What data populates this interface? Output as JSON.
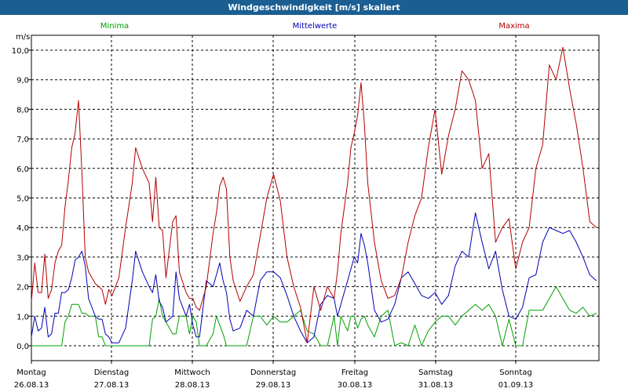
{
  "window": {
    "title": "Windgeschwindigkeit [m/s] skaliert"
  },
  "chart_data": {
    "type": "line",
    "title": "Windgeschwindigkeit [m/s] skaliert",
    "ylabel": "m/s",
    "xlabel": "",
    "ylim": [
      0,
      10.5
    ],
    "yticks": [
      "0,0",
      "1,0",
      "2,0",
      "3,0",
      "4,0",
      "5,0",
      "6,0",
      "7,0",
      "8,0",
      "9,0",
      "10,0"
    ],
    "x_range_hours": [
      0,
      168
    ],
    "day_labels": [
      {
        "day": "Montag",
        "date": "26.08.13"
      },
      {
        "day": "Dienstag",
        "date": "27.08.13"
      },
      {
        "day": "Mittwoch",
        "date": "28.08.13"
      },
      {
        "day": "Donnerstag",
        "date": "29.08.13"
      },
      {
        "day": "Freitag",
        "date": "30.08.13"
      },
      {
        "day": "Samstag",
        "date": "31.08.13"
      },
      {
        "day": "Sonntag",
        "date": "01.09.13"
      }
    ],
    "grid": true,
    "legend_position": "top",
    "series": [
      {
        "name": "Minima",
        "color": "#00a000",
        "x": [
          0,
          1,
          2,
          3,
          4,
          5,
          6,
          7,
          8,
          9,
          10,
          11,
          12,
          13,
          14,
          15,
          16,
          17,
          18,
          19,
          20,
          21,
          22,
          23,
          24,
          26,
          28,
          30,
          31,
          33,
          35,
          36,
          37,
          38,
          39,
          40,
          42,
          43,
          44,
          46,
          47,
          48,
          49,
          50,
          52,
          54,
          55,
          56,
          57,
          58,
          59,
          60,
          62,
          64,
          66,
          68,
          70,
          72,
          74,
          76,
          78,
          80,
          82,
          84,
          86,
          88,
          90,
          91,
          92,
          94,
          95,
          96,
          97,
          98,
          99,
          100,
          102,
          104,
          106,
          108,
          110,
          112,
          114,
          116,
          118,
          120,
          122,
          124,
          126,
          128,
          130,
          132,
          134,
          136,
          138,
          140,
          142,
          144,
          146,
          148,
          150,
          152,
          154,
          156,
          158,
          160,
          162,
          164,
          166,
          168
        ],
        "values": [
          0,
          0,
          0,
          0,
          0,
          0,
          0,
          0,
          0,
          0,
          0.8,
          1.0,
          1.4,
          1.4,
          1.4,
          1.1,
          1.1,
          1.0,
          1.0,
          1.0,
          0.3,
          0.3,
          0,
          0,
          0,
          0,
          0,
          0,
          0,
          0,
          0,
          0.9,
          1.0,
          1.6,
          1.0,
          0.8,
          0.4,
          0.4,
          1.0,
          1.0,
          0.4,
          1.0,
          0.8,
          0,
          0,
          0.4,
          1.0,
          0.7,
          0.4,
          0,
          0,
          0,
          0,
          0,
          1.0,
          1.0,
          0.7,
          1.0,
          0.8,
          0.8,
          1.0,
          1.2,
          0.5,
          0.4,
          0,
          0,
          1.0,
          0,
          1.0,
          0.5,
          1.0,
          1.0,
          0.6,
          0.9,
          1.0,
          0.7,
          0.3,
          1.0,
          1.2,
          0,
          0.1,
          0,
          0.7,
          0,
          0.5,
          0.8,
          1.0,
          1.0,
          0.7,
          1.0,
          1.2,
          1.4,
          1.2,
          1.4,
          1.0,
          0,
          0.9,
          0,
          0,
          1.2,
          1.2,
          1.2,
          1.6,
          2.0,
          1.6,
          1.2,
          1.1,
          1.3,
          1.0,
          1.1
        ]
      },
      {
        "name": "Mittelwerte",
        "color": "#0000b4",
        "x": [
          0,
          1,
          2,
          3,
          4,
          5,
          6,
          7,
          8,
          9,
          10,
          11,
          12,
          13,
          14,
          15,
          16,
          17,
          18,
          19,
          20,
          21,
          22,
          23,
          24,
          26,
          28,
          30,
          31,
          33,
          35,
          36,
          37,
          38,
          39,
          40,
          42,
          43,
          44,
          46,
          47,
          48,
          49,
          50,
          52,
          54,
          55,
          56,
          57,
          58,
          59,
          60,
          62,
          64,
          66,
          68,
          70,
          72,
          74,
          76,
          78,
          80,
          82,
          84,
          86,
          88,
          90,
          91,
          92,
          94,
          95,
          96,
          97,
          98,
          99,
          100,
          102,
          104,
          106,
          108,
          110,
          112,
          114,
          116,
          118,
          120,
          122,
          124,
          126,
          128,
          130,
          132,
          134,
          136,
          138,
          140,
          142,
          144,
          146,
          148,
          150,
          152,
          154,
          156,
          158,
          160,
          162,
          164,
          166,
          168
        ],
        "values": [
          0.3,
          1.0,
          0.5,
          0.6,
          1.3,
          0.3,
          0.4,
          1.1,
          1.1,
          1.8,
          1.8,
          1.9,
          2.3,
          2.9,
          3.0,
          3.2,
          2.7,
          1.6,
          1.3,
          1.0,
          0.9,
          0.9,
          0.4,
          0.3,
          0.1,
          0.1,
          0.6,
          2.2,
          3.2,
          2.5,
          2.0,
          1.8,
          2.4,
          1.5,
          1.3,
          0.8,
          1.0,
          2.5,
          1.6,
          1.0,
          1.4,
          0.7,
          0.3,
          0.3,
          2.2,
          2.0,
          2.4,
          2.8,
          2.2,
          1.8,
          0.9,
          0.5,
          0.6,
          1.2,
          1.0,
          2.2,
          2.5,
          2.5,
          2.3,
          1.7,
          1.0,
          0.5,
          0.1,
          0.3,
          1.4,
          1.7,
          1.6,
          1.0,
          1.4,
          2.2,
          2.6,
          3.0,
          2.8,
          3.8,
          3.4,
          2.8,
          1.2,
          0.8,
          0.9,
          1.4,
          2.3,
          2.5,
          2.1,
          1.7,
          1.6,
          1.8,
          1.4,
          1.7,
          2.7,
          3.2,
          3.0,
          4.5,
          3.5,
          2.6,
          3.2,
          1.9,
          1.0,
          0.9,
          1.3,
          2.3,
          2.4,
          3.5,
          4.0,
          3.9,
          3.8,
          3.9,
          3.5,
          3.0,
          2.4,
          2.2
        ]
      },
      {
        "name": "Maxima",
        "color": "#b40000",
        "x": [
          0,
          1,
          2,
          3,
          4,
          5,
          6,
          7,
          8,
          9,
          10,
          11,
          12,
          13,
          14,
          15,
          16,
          17,
          18,
          19,
          20,
          21,
          22,
          23,
          24,
          26,
          28,
          30,
          31,
          33,
          35,
          36,
          37,
          38,
          39,
          40,
          42,
          43,
          44,
          46,
          47,
          48,
          49,
          50,
          52,
          54,
          55,
          56,
          57,
          58,
          59,
          60,
          62,
          64,
          66,
          68,
          70,
          72,
          74,
          76,
          78,
          80,
          82,
          84,
          86,
          88,
          90,
          91,
          92,
          94,
          95,
          96,
          97,
          98,
          99,
          100,
          102,
          104,
          106,
          108,
          110,
          112,
          114,
          116,
          118,
          120,
          122,
          124,
          126,
          128,
          130,
          132,
          134,
          136,
          138,
          140,
          142,
          144,
          146,
          148,
          150,
          152,
          154,
          156,
          158,
          160,
          162,
          164,
          166,
          168
        ],
        "values": [
          1.5,
          2.8,
          1.8,
          1.8,
          3.1,
          1.6,
          1.9,
          2.8,
          3.2,
          3.4,
          4.7,
          5.6,
          6.7,
          7.2,
          8.3,
          5.9,
          3.0,
          2.5,
          2.3,
          2.1,
          2.0,
          1.9,
          1.4,
          1.9,
          1.7,
          2.3,
          4.0,
          5.5,
          6.7,
          6.0,
          5.5,
          4.2,
          5.7,
          4.0,
          3.9,
          2.3,
          4.2,
          4.4,
          2.5,
          1.8,
          1.6,
          1.6,
          1.3,
          1.2,
          2.0,
          3.8,
          4.5,
          5.4,
          5.7,
          5.3,
          3.0,
          2.2,
          1.5,
          2.0,
          2.4,
          3.7,
          5.0,
          5.8,
          4.9,
          3.0,
          2.0,
          1.3,
          0.1,
          2.0,
          1.2,
          2.0,
          1.6,
          2.5,
          3.8,
          5.5,
          6.7,
          7.2,
          7.8,
          8.9,
          7.5,
          5.5,
          3.5,
          2.2,
          1.6,
          1.7,
          2.3,
          3.5,
          4.4,
          5.0,
          6.7,
          8.0,
          5.8,
          7.1,
          8.0,
          9.3,
          9.0,
          8.3,
          6.0,
          6.5,
          3.5,
          4.0,
          4.3,
          2.6,
          3.5,
          4.0,
          6.0,
          6.8,
          9.5,
          9.0,
          10.1,
          8.7,
          7.5,
          6.0,
          4.2,
          4.0
        ]
      }
    ]
  }
}
